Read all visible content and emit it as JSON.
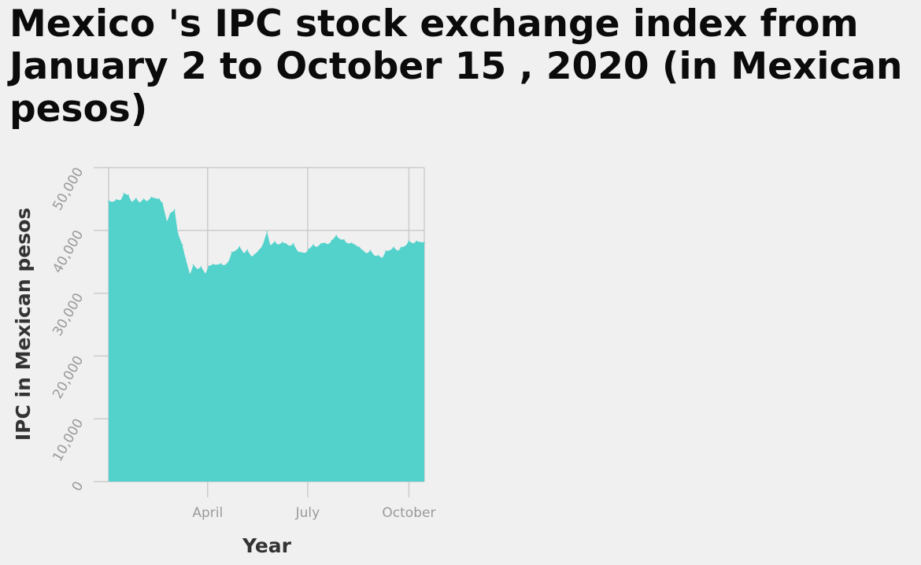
{
  "title": "Mexico 's IPC stock exchange index from January 2 to October 15 , 2020 (in Mexican pesos)",
  "colors": {
    "area": "#53d1cb",
    "grid": "#cccccc",
    "background": "#f0f0f0"
  },
  "chart_data": {
    "type": "area",
    "title": "Mexico 's IPC stock exchange index from January 2 to October 15 , 2020 (in Mexican pesos)",
    "xlabel": "Year",
    "ylabel": "IPC in Mexican pesos",
    "xlim": [
      "2020-01-02",
      "2020-10-15"
    ],
    "ylim": [
      0,
      50000
    ],
    "grid": true,
    "y_ticks": [
      {
        "value": 0,
        "label": "0"
      },
      {
        "value": 10000,
        "label": "10,000"
      },
      {
        "value": 20000,
        "label": "20,000"
      },
      {
        "value": 30000,
        "label": "30,000"
      },
      {
        "value": 40000,
        "label": "40,000"
      },
      {
        "value": 50000,
        "label": "50,000"
      }
    ],
    "x_ticks": [
      {
        "value": "2020-04-01",
        "label": "April"
      },
      {
        "value": "2020-07-01",
        "label": "July"
      },
      {
        "value": "2020-10-01",
        "label": "October"
      }
    ],
    "series": [
      {
        "x": [
          "2020-01-02",
          "2020-01-06",
          "2020-01-09",
          "2020-01-13",
          "2020-01-16",
          "2020-01-20",
          "2020-01-23",
          "2020-01-27",
          "2020-01-30",
          "2020-02-03",
          "2020-02-06",
          "2020-02-10",
          "2020-02-13",
          "2020-02-17",
          "2020-02-20",
          "2020-02-24",
          "2020-02-27",
          "2020-03-02",
          "2020-03-05",
          "2020-03-09",
          "2020-03-12",
          "2020-03-16",
          "2020-03-19",
          "2020-03-23",
          "2020-03-26",
          "2020-03-30",
          "2020-04-02",
          "2020-04-06",
          "2020-04-09",
          "2020-04-13",
          "2020-04-16",
          "2020-04-20",
          "2020-04-23",
          "2020-04-27",
          "2020-04-30",
          "2020-05-04",
          "2020-05-07",
          "2020-05-11",
          "2020-05-14",
          "2020-05-18",
          "2020-05-21",
          "2020-05-25",
          "2020-05-28",
          "2020-06-01",
          "2020-06-04",
          "2020-06-08",
          "2020-06-11",
          "2020-06-15",
          "2020-06-18",
          "2020-06-22",
          "2020-06-25",
          "2020-06-29",
          "2020-07-02",
          "2020-07-06",
          "2020-07-09",
          "2020-07-13",
          "2020-07-16",
          "2020-07-20",
          "2020-07-23",
          "2020-07-27",
          "2020-07-30",
          "2020-08-03",
          "2020-08-06",
          "2020-08-10",
          "2020-08-13",
          "2020-08-17",
          "2020-08-20",
          "2020-08-24",
          "2020-08-27",
          "2020-08-31",
          "2020-09-03",
          "2020-09-07",
          "2020-09-10",
          "2020-09-14",
          "2020-09-17",
          "2020-09-21",
          "2020-09-24",
          "2020-09-28",
          "2020-10-01",
          "2020-10-05",
          "2020-10-08",
          "2020-10-12",
          "2020-10-15"
        ],
        "values": [
          44700,
          44500,
          44900,
          44800,
          45900,
          45600,
          44500,
          45100,
          44400,
          45000,
          44600,
          45300,
          45100,
          45000,
          44300,
          41400,
          42700,
          43300,
          39500,
          37700,
          35500,
          33000,
          34500,
          33800,
          34200,
          33100,
          34300,
          34600,
          34500,
          34700,
          34400,
          35000,
          36500,
          36800,
          37400,
          36300,
          36900,
          35800,
          36200,
          36900,
          37600,
          39800,
          37600,
          38200,
          37700,
          38100,
          37900,
          37500,
          37900,
          36600,
          36500,
          36400,
          37000,
          37700,
          37300,
          37900,
          38000,
          37800,
          38400,
          39200,
          38600,
          38500,
          37900,
          38000,
          37700,
          37300,
          36800,
          36300,
          36800,
          35900,
          36000,
          35600,
          36700,
          36800,
          37300,
          36700,
          37300,
          37500,
          38300,
          37900,
          38300,
          38100,
          38100
        ]
      }
    ]
  }
}
